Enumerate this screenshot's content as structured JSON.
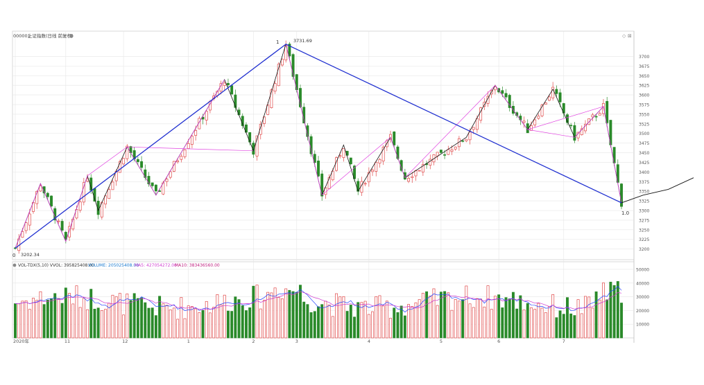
{
  "header": {
    "symbol": "000001",
    "name": "上证指数(日线 前复权)",
    "volume_legend": "VOL-TDX(5,10) VVOL: 395825408.00",
    "volume_value": "VOLUME: 205025408.00",
    "ma5_value": "MA5: 427054272.00",
    "ma10_value": "MA10: 383436560.00"
  },
  "annotations": {
    "low_price": "3202.34",
    "high_price": "3731.69",
    "wave_start": "0",
    "wave_peak": "1",
    "wave_end": "1.0"
  },
  "colors": {
    "up": "#e04848",
    "down": "#2a8a2a",
    "trend_blue": "#1f2fd0",
    "trend_magenta": "#e040e0",
    "zigzag": "#111111",
    "grid": "#e6e6e6",
    "ma5": "#2040ff",
    "ma10": "#cc33cc"
  },
  "chart_data": [
    {
      "type": "candlestick",
      "ylim": [
        3185,
        3735
      ],
      "y_ticks": [
        3200,
        3225,
        3250,
        3275,
        3300,
        3325,
        3350,
        3375,
        3400,
        3425,
        3450,
        3475,
        3500,
        3525,
        3550,
        3575,
        3600,
        3625,
        3650,
        3675,
        3700
      ],
      "x_ticks": [
        {
          "label": "2020年",
          "index": 0
        },
        {
          "label": "11",
          "index": 14
        },
        {
          "label": "12",
          "index": 30
        },
        {
          "label": "1",
          "index": 48
        },
        {
          "label": "2",
          "index": 66
        },
        {
          "label": "3",
          "index": 78
        },
        {
          "label": "4",
          "index": 98
        },
        {
          "label": "5",
          "index": 118
        },
        {
          "label": "6",
          "index": 134
        },
        {
          "label": "7",
          "index": 152
        }
      ],
      "points_count": 168,
      "key_points": [
        {
          "index": 0,
          "close": 3202.34
        },
        {
          "index": 7,
          "close": 3370
        },
        {
          "index": 14,
          "close": 3220
        },
        {
          "index": 20,
          "close": 3390
        },
        {
          "index": 23,
          "close": 3300
        },
        {
          "index": 31,
          "close": 3465
        },
        {
          "index": 39,
          "close": 3340
        },
        {
          "index": 58,
          "close": 3640
        },
        {
          "index": 66,
          "close": 3455
        },
        {
          "index": 75,
          "close": 3731.69
        },
        {
          "index": 85,
          "close": 3340
        },
        {
          "index": 91,
          "close": 3470
        },
        {
          "index": 95,
          "close": 3350
        },
        {
          "index": 104,
          "close": 3490
        },
        {
          "index": 108,
          "close": 3385
        },
        {
          "index": 125,
          "close": 3490
        },
        {
          "index": 133,
          "close": 3625
        },
        {
          "index": 142,
          "close": 3510
        },
        {
          "index": 149,
          "close": 3615
        },
        {
          "index": 155,
          "close": 3490
        },
        {
          "index": 163,
          "close": 3570
        },
        {
          "index": 168,
          "close": 3320
        }
      ],
      "blue_trendlines": [
        [
          {
            "index": 0,
            "value": 3202.34
          },
          {
            "index": 75,
            "value": 3731.69
          }
        ],
        [
          {
            "index": 75,
            "value": 3731.69
          },
          {
            "index": 168,
            "value": 3320
          }
        ]
      ],
      "projection": [
        {
          "index": 168,
          "value": 3320
        },
        {
          "index": 174,
          "value": 3340
        },
        {
          "index": 181,
          "value": 3355
        },
        {
          "index": 188,
          "value": 3385
        }
      ]
    },
    {
      "type": "bar",
      "title": "VOL-TDX(5,10)",
      "ylim": [
        0,
        52000
      ],
      "y_ticks": [
        10000,
        20000,
        30000,
        40000,
        50000
      ],
      "series": [
        {
          "name": "VOLUME",
          "values_range": [
            13000,
            49000
          ]
        },
        {
          "name": "MA5",
          "values_range": [
            20000,
            40000
          ]
        },
        {
          "name": "MA10",
          "values_range": [
            20000,
            38000
          ]
        }
      ]
    }
  ]
}
